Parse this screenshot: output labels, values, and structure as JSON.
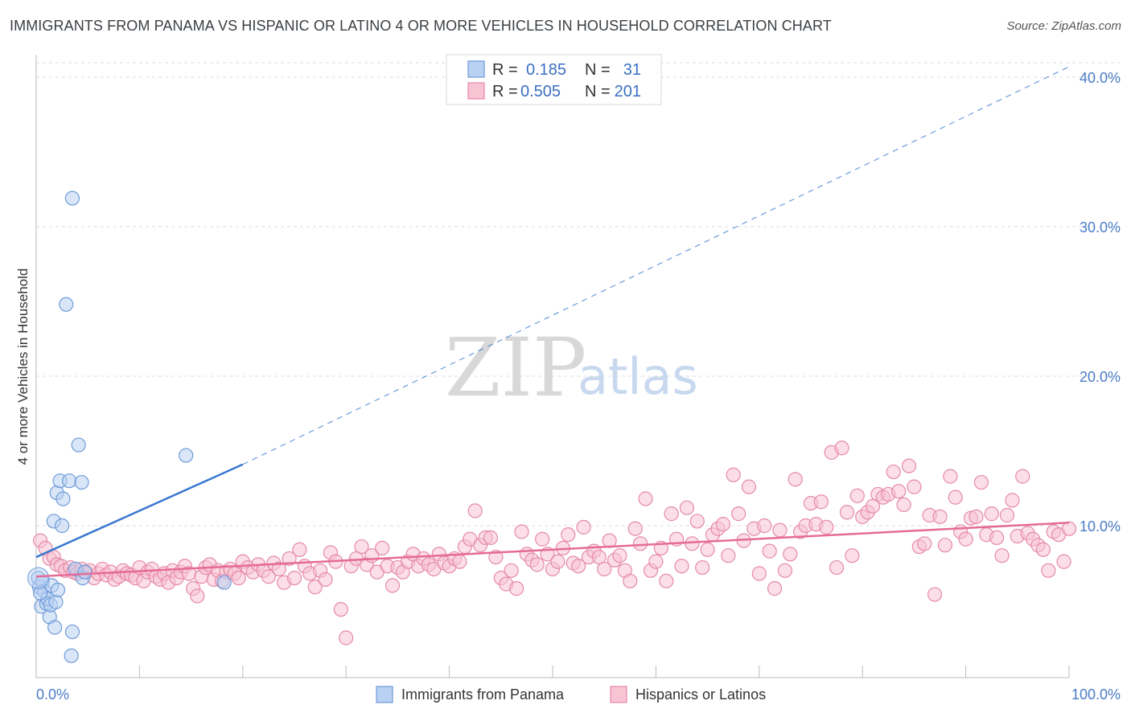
{
  "title": "IMMIGRANTS FROM PANAMA VS HISPANIC OR LATINO 4 OR MORE VEHICLES IN HOUSEHOLD CORRELATION CHART",
  "source": "Source: ZipAtlas.com",
  "watermark": {
    "zip": "ZIP",
    "atlas": "atlas"
  },
  "legend": {
    "r_label": "R =",
    "n_label": "N =",
    "items": [
      {
        "r": "0.185",
        "n": "31",
        "fill": "#b9d1f3",
        "stroke": "#6f9bd8"
      },
      {
        "r": "0.505",
        "n": "201",
        "fill": "#f8c3d3",
        "stroke": "#e58aa8"
      }
    ]
  },
  "colors": {
    "blue": "#3a78d0",
    "pink": "#e56b97",
    "grid": "#dddddd"
  },
  "chart_data": {
    "type": "scatter",
    "xlabel": "",
    "ylabel": "4 or more Vehicles in Household",
    "xlim": [
      0,
      100
    ],
    "ylim": [
      0,
      42
    ],
    "x_tick_labels": [
      {
        "value": 0,
        "label": "0.0%"
      },
      {
        "value": 100,
        "label": "100.0%"
      }
    ],
    "y_tick_labels": [
      {
        "value": 10,
        "label": "10.0%"
      },
      {
        "value": 20,
        "label": "20.0%"
      },
      {
        "value": 30,
        "label": "30.0%"
      },
      {
        "value": 40,
        "label": "40.0%"
      }
    ],
    "grid": true,
    "series": [
      {
        "name": "Immigrants from Panama",
        "color": "#6f9bd8",
        "fill": "#b9d1f3",
        "trend": {
          "x0": 0,
          "y0": 7.9,
          "x1": 20,
          "y1": 14.1,
          "dashed_to_x": 100,
          "dashed_to_y": 40.7
        },
        "points": [
          [
            0.2,
            6.5
          ],
          [
            0.3,
            5.9
          ],
          [
            0.5,
            4.6
          ],
          [
            0.6,
            6.2
          ],
          [
            0.8,
            5.6
          ],
          [
            1.0,
            4.8
          ],
          [
            1.1,
            5.1
          ],
          [
            1.3,
            3.9
          ],
          [
            1.4,
            4.7
          ],
          [
            1.5,
            6.0
          ],
          [
            1.7,
            10.3
          ],
          [
            1.8,
            3.2
          ],
          [
            1.9,
            4.9
          ],
          [
            2.0,
            12.2
          ],
          [
            2.1,
            5.7
          ],
          [
            2.3,
            13.0
          ],
          [
            2.5,
            10.0
          ],
          [
            2.6,
            11.8
          ],
          [
            2.9,
            24.8
          ],
          [
            3.2,
            13.0
          ],
          [
            3.4,
            1.3
          ],
          [
            3.5,
            2.9
          ],
          [
            3.5,
            31.9
          ],
          [
            3.8,
            7.1
          ],
          [
            4.1,
            15.4
          ],
          [
            4.4,
            12.9
          ],
          [
            4.5,
            6.5
          ],
          [
            4.7,
            6.9
          ],
          [
            14.5,
            14.7
          ],
          [
            18.2,
            6.2
          ],
          [
            0.4,
            5.5
          ]
        ]
      },
      {
        "name": "Hispanics or Latinos",
        "color": "#e58aa8",
        "fill": "#f8c3d3",
        "trend": {
          "x0": 0,
          "y0": 6.6,
          "x1": 100,
          "y1": 10.2
        },
        "points": [
          [
            0.4,
            9.0
          ],
          [
            0.9,
            8.5
          ],
          [
            1.3,
            7.8
          ],
          [
            1.7,
            7.9
          ],
          [
            2.0,
            7.4
          ],
          [
            2.4,
            7.3
          ],
          [
            2.8,
            7.0
          ],
          [
            3.3,
            7.2
          ],
          [
            3.6,
            6.9
          ],
          [
            4.0,
            6.8
          ],
          [
            4.4,
            7.1
          ],
          [
            4.8,
            6.9
          ],
          [
            5.2,
            7.0
          ],
          [
            5.6,
            6.5
          ],
          [
            6.0,
            6.8
          ],
          [
            6.4,
            7.1
          ],
          [
            6.8,
            6.7
          ],
          [
            7.2,
            6.9
          ],
          [
            7.6,
            6.4
          ],
          [
            8.0,
            6.6
          ],
          [
            8.4,
            7.0
          ],
          [
            8.8,
            6.8
          ],
          [
            9.2,
            6.7
          ],
          [
            9.6,
            6.5
          ],
          [
            10.0,
            7.2
          ],
          [
            10.4,
            6.3
          ],
          [
            10.8,
            6.9
          ],
          [
            11.2,
            7.1
          ],
          [
            11.6,
            6.6
          ],
          [
            12.0,
            6.4
          ],
          [
            12.4,
            6.8
          ],
          [
            12.8,
            6.2
          ],
          [
            13.2,
            7.0
          ],
          [
            13.6,
            6.5
          ],
          [
            14.0,
            6.9
          ],
          [
            14.4,
            7.3
          ],
          [
            14.8,
            6.8
          ],
          [
            15.2,
            5.8
          ],
          [
            15.6,
            5.3
          ],
          [
            16.0,
            6.6
          ],
          [
            16.4,
            7.2
          ],
          [
            16.8,
            7.4
          ],
          [
            17.2,
            6.4
          ],
          [
            17.6,
            7.0
          ],
          [
            18.0,
            6.3
          ],
          [
            18.4,
            6.9
          ],
          [
            18.8,
            7.1
          ],
          [
            19.2,
            6.8
          ],
          [
            19.6,
            6.5
          ],
          [
            20.0,
            7.6
          ],
          [
            20.5,
            7.2
          ],
          [
            21.0,
            6.9
          ],
          [
            21.5,
            7.4
          ],
          [
            22.0,
            7.0
          ],
          [
            22.5,
            6.6
          ],
          [
            23.0,
            7.5
          ],
          [
            23.5,
            7.1
          ],
          [
            24.0,
            6.2
          ],
          [
            24.5,
            7.8
          ],
          [
            25.0,
            6.5
          ],
          [
            25.5,
            8.4
          ],
          [
            26.0,
            7.3
          ],
          [
            26.5,
            6.8
          ],
          [
            27.0,
            5.9
          ],
          [
            27.5,
            7.0
          ],
          [
            28.0,
            6.4
          ],
          [
            28.5,
            8.2
          ],
          [
            29.0,
            7.6
          ],
          [
            29.5,
            4.4
          ],
          [
            30.0,
            2.5
          ],
          [
            30.5,
            7.3
          ],
          [
            31.0,
            7.8
          ],
          [
            31.5,
            8.6
          ],
          [
            32.0,
            7.4
          ],
          [
            32.5,
            8.0
          ],
          [
            33.0,
            6.9
          ],
          [
            33.5,
            8.5
          ],
          [
            34.0,
            7.3
          ],
          [
            34.5,
            6.0
          ],
          [
            35.0,
            7.2
          ],
          [
            35.5,
            6.9
          ],
          [
            36.0,
            7.6
          ],
          [
            36.5,
            8.1
          ],
          [
            37.0,
            7.3
          ],
          [
            37.5,
            7.8
          ],
          [
            38.0,
            7.4
          ],
          [
            38.5,
            7.1
          ],
          [
            39.0,
            8.1
          ],
          [
            39.5,
            7.5
          ],
          [
            40.0,
            7.3
          ],
          [
            40.5,
            7.8
          ],
          [
            41.0,
            7.6
          ],
          [
            41.5,
            8.6
          ],
          [
            42.0,
            9.1
          ],
          [
            42.5,
            11.0
          ],
          [
            43.0,
            8.7
          ],
          [
            43.5,
            9.2
          ],
          [
            44.0,
            9.2
          ],
          [
            44.5,
            7.9
          ],
          [
            45.0,
            6.5
          ],
          [
            45.5,
            6.1
          ],
          [
            46.0,
            7.0
          ],
          [
            46.5,
            5.8
          ],
          [
            47.0,
            9.6
          ],
          [
            47.5,
            8.1
          ],
          [
            48.0,
            7.7
          ],
          [
            48.5,
            7.4
          ],
          [
            49.0,
            9.1
          ],
          [
            49.5,
            8.1
          ],
          [
            50.0,
            7.1
          ],
          [
            50.5,
            7.6
          ],
          [
            51.0,
            8.5
          ],
          [
            51.5,
            9.4
          ],
          [
            52.0,
            7.5
          ],
          [
            52.5,
            7.3
          ],
          [
            53.0,
            9.9
          ],
          [
            53.5,
            7.9
          ],
          [
            54.0,
            8.3
          ],
          [
            54.5,
            7.9
          ],
          [
            55.0,
            7.1
          ],
          [
            55.5,
            9.0
          ],
          [
            56.0,
            7.7
          ],
          [
            56.5,
            8.0
          ],
          [
            57.0,
            7.0
          ],
          [
            57.5,
            6.3
          ],
          [
            58.0,
            9.8
          ],
          [
            58.5,
            8.8
          ],
          [
            59.0,
            11.8
          ],
          [
            59.5,
            7.0
          ],
          [
            60.0,
            7.6
          ],
          [
            60.5,
            8.5
          ],
          [
            61.0,
            6.3
          ],
          [
            61.5,
            10.8
          ],
          [
            62.0,
            9.1
          ],
          [
            62.5,
            7.3
          ],
          [
            63.0,
            11.2
          ],
          [
            63.5,
            8.8
          ],
          [
            64.0,
            10.3
          ],
          [
            64.5,
            7.2
          ],
          [
            65.0,
            8.4
          ],
          [
            65.5,
            9.4
          ],
          [
            66.0,
            9.8
          ],
          [
            66.5,
            10.1
          ],
          [
            67.0,
            8.0
          ],
          [
            67.5,
            13.4
          ],
          [
            68.0,
            10.8
          ],
          [
            68.5,
            9.0
          ],
          [
            69.0,
            12.6
          ],
          [
            69.5,
            9.8
          ],
          [
            70.0,
            6.8
          ],
          [
            70.5,
            10.0
          ],
          [
            71.0,
            8.3
          ],
          [
            71.5,
            5.8
          ],
          [
            72.0,
            9.7
          ],
          [
            72.5,
            7.0
          ],
          [
            73.0,
            8.1
          ],
          [
            73.5,
            13.1
          ],
          [
            74.0,
            9.6
          ],
          [
            74.5,
            10.0
          ],
          [
            75.0,
            11.5
          ],
          [
            75.5,
            10.1
          ],
          [
            76.0,
            11.6
          ],
          [
            76.5,
            9.9
          ],
          [
            77.0,
            14.9
          ],
          [
            77.5,
            7.2
          ],
          [
            78.0,
            15.2
          ],
          [
            78.5,
            10.9
          ],
          [
            79.0,
            8.0
          ],
          [
            79.5,
            12.0
          ],
          [
            80.0,
            10.6
          ],
          [
            80.5,
            10.9
          ],
          [
            81.0,
            11.3
          ],
          [
            81.5,
            12.1
          ],
          [
            82.0,
            11.9
          ],
          [
            82.5,
            12.1
          ],
          [
            83.0,
            13.6
          ],
          [
            83.5,
            12.3
          ],
          [
            84.0,
            11.4
          ],
          [
            84.5,
            14.0
          ],
          [
            85.0,
            12.6
          ],
          [
            85.5,
            8.6
          ],
          [
            86.0,
            8.8
          ],
          [
            86.5,
            10.7
          ],
          [
            87.0,
            5.4
          ],
          [
            87.5,
            10.6
          ],
          [
            88.0,
            8.7
          ],
          [
            88.5,
            13.3
          ],
          [
            89.0,
            11.9
          ],
          [
            89.5,
            9.6
          ],
          [
            90.0,
            9.1
          ],
          [
            90.5,
            10.5
          ],
          [
            91.0,
            10.6
          ],
          [
            91.5,
            12.9
          ],
          [
            92.0,
            9.4
          ],
          [
            92.5,
            10.8
          ],
          [
            93.0,
            9.2
          ],
          [
            93.5,
            8.0
          ],
          [
            94.0,
            10.7
          ],
          [
            94.5,
            11.7
          ],
          [
            95.0,
            9.3
          ],
          [
            95.5,
            13.3
          ],
          [
            96.0,
            9.5
          ],
          [
            96.5,
            9.1
          ],
          [
            97.0,
            8.7
          ],
          [
            97.5,
            8.4
          ],
          [
            98.0,
            7.0
          ],
          [
            98.5,
            9.6
          ],
          [
            99.0,
            9.4
          ],
          [
            99.5,
            7.6
          ],
          [
            100.0,
            9.8
          ]
        ]
      }
    ]
  }
}
